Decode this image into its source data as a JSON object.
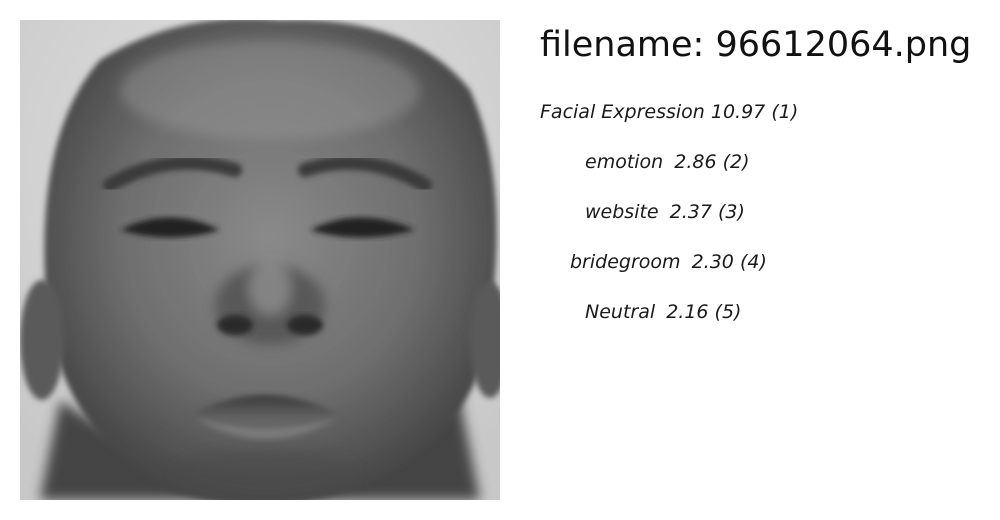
{
  "header": {
    "filename_prefix": "filename:",
    "filename": "96612064.png"
  },
  "image": {
    "subject": "grayscale close-up face photograph"
  },
  "predictions": [
    {
      "label": "Facial Expression",
      "score": "10.97",
      "rank": "(1)"
    },
    {
      "label": "emotion",
      "score": "2.86",
      "rank": "(2)"
    },
    {
      "label": "website",
      "score": "2.37",
      "rank": "(3)"
    },
    {
      "label": "bridegroom",
      "score": "2.30",
      "rank": "(4)"
    },
    {
      "label": "Neutral",
      "score": "2.16",
      "rank": "(5)"
    }
  ]
}
